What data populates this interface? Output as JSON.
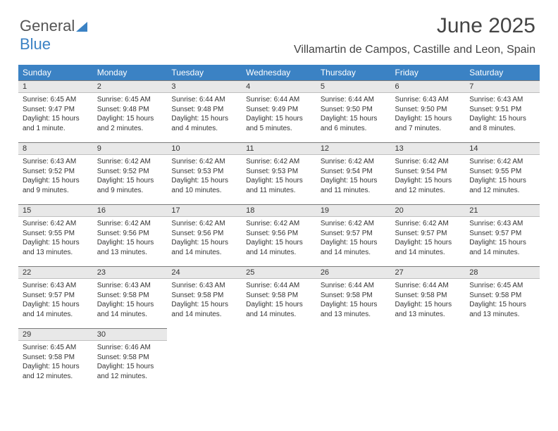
{
  "logo": {
    "text1": "General",
    "text2": "Blue"
  },
  "title": "June 2025",
  "location": "Villamartin de Campos, Castille and Leon, Spain",
  "headers": [
    "Sunday",
    "Monday",
    "Tuesday",
    "Wednesday",
    "Thursday",
    "Friday",
    "Saturday"
  ],
  "header_bg": "#3b82c4",
  "header_fg": "#ffffff",
  "daynum_bg": "#e8e8e8",
  "text_color": "#333333",
  "font_family": "Arial",
  "days": [
    {
      "n": "1",
      "sr": "6:45 AM",
      "ss": "9:47 PM",
      "dl": "15 hours and 1 minute."
    },
    {
      "n": "2",
      "sr": "6:45 AM",
      "ss": "9:48 PM",
      "dl": "15 hours and 2 minutes."
    },
    {
      "n": "3",
      "sr": "6:44 AM",
      "ss": "9:48 PM",
      "dl": "15 hours and 4 minutes."
    },
    {
      "n": "4",
      "sr": "6:44 AM",
      "ss": "9:49 PM",
      "dl": "15 hours and 5 minutes."
    },
    {
      "n": "5",
      "sr": "6:44 AM",
      "ss": "9:50 PM",
      "dl": "15 hours and 6 minutes."
    },
    {
      "n": "6",
      "sr": "6:43 AM",
      "ss": "9:50 PM",
      "dl": "15 hours and 7 minutes."
    },
    {
      "n": "7",
      "sr": "6:43 AM",
      "ss": "9:51 PM",
      "dl": "15 hours and 8 minutes."
    },
    {
      "n": "8",
      "sr": "6:43 AM",
      "ss": "9:52 PM",
      "dl": "15 hours and 9 minutes."
    },
    {
      "n": "9",
      "sr": "6:42 AM",
      "ss": "9:52 PM",
      "dl": "15 hours and 9 minutes."
    },
    {
      "n": "10",
      "sr": "6:42 AM",
      "ss": "9:53 PM",
      "dl": "15 hours and 10 minutes."
    },
    {
      "n": "11",
      "sr": "6:42 AM",
      "ss": "9:53 PM",
      "dl": "15 hours and 11 minutes."
    },
    {
      "n": "12",
      "sr": "6:42 AM",
      "ss": "9:54 PM",
      "dl": "15 hours and 11 minutes."
    },
    {
      "n": "13",
      "sr": "6:42 AM",
      "ss": "9:54 PM",
      "dl": "15 hours and 12 minutes."
    },
    {
      "n": "14",
      "sr": "6:42 AM",
      "ss": "9:55 PM",
      "dl": "15 hours and 12 minutes."
    },
    {
      "n": "15",
      "sr": "6:42 AM",
      "ss": "9:55 PM",
      "dl": "15 hours and 13 minutes."
    },
    {
      "n": "16",
      "sr": "6:42 AM",
      "ss": "9:56 PM",
      "dl": "15 hours and 13 minutes."
    },
    {
      "n": "17",
      "sr": "6:42 AM",
      "ss": "9:56 PM",
      "dl": "15 hours and 14 minutes."
    },
    {
      "n": "18",
      "sr": "6:42 AM",
      "ss": "9:56 PM",
      "dl": "15 hours and 14 minutes."
    },
    {
      "n": "19",
      "sr": "6:42 AM",
      "ss": "9:57 PM",
      "dl": "15 hours and 14 minutes."
    },
    {
      "n": "20",
      "sr": "6:42 AM",
      "ss": "9:57 PM",
      "dl": "15 hours and 14 minutes."
    },
    {
      "n": "21",
      "sr": "6:43 AM",
      "ss": "9:57 PM",
      "dl": "15 hours and 14 minutes."
    },
    {
      "n": "22",
      "sr": "6:43 AM",
      "ss": "9:57 PM",
      "dl": "15 hours and 14 minutes."
    },
    {
      "n": "23",
      "sr": "6:43 AM",
      "ss": "9:58 PM",
      "dl": "15 hours and 14 minutes."
    },
    {
      "n": "24",
      "sr": "6:43 AM",
      "ss": "9:58 PM",
      "dl": "15 hours and 14 minutes."
    },
    {
      "n": "25",
      "sr": "6:44 AM",
      "ss": "9:58 PM",
      "dl": "15 hours and 14 minutes."
    },
    {
      "n": "26",
      "sr": "6:44 AM",
      "ss": "9:58 PM",
      "dl": "15 hours and 13 minutes."
    },
    {
      "n": "27",
      "sr": "6:44 AM",
      "ss": "9:58 PM",
      "dl": "15 hours and 13 minutes."
    },
    {
      "n": "28",
      "sr": "6:45 AM",
      "ss": "9:58 PM",
      "dl": "15 hours and 13 minutes."
    },
    {
      "n": "29",
      "sr": "6:45 AM",
      "ss": "9:58 PM",
      "dl": "15 hours and 12 minutes."
    },
    {
      "n": "30",
      "sr": "6:46 AM",
      "ss": "9:58 PM",
      "dl": "15 hours and 12 minutes."
    }
  ],
  "labels": {
    "sunrise": "Sunrise:",
    "sunset": "Sunset:",
    "daylight": "Daylight:"
  }
}
